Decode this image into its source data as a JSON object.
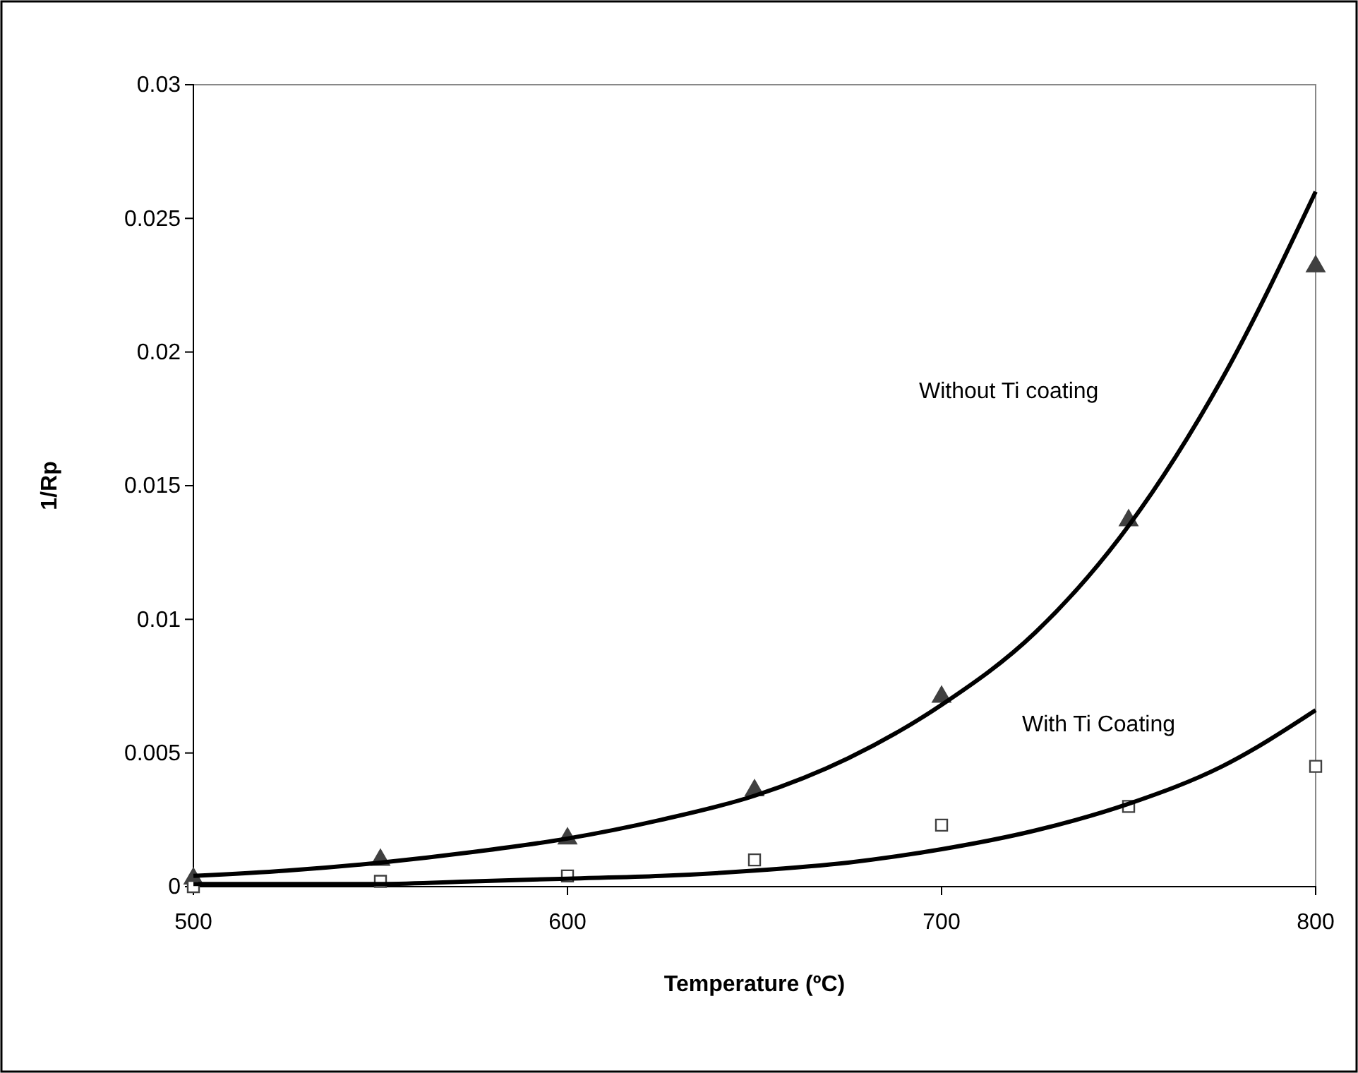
{
  "chart_data": {
    "type": "scatter",
    "xlabel": "Temperature (ºC)",
    "ylabel": "1/Rp",
    "xlim": [
      500,
      800
    ],
    "xticks": [
      500,
      600,
      700,
      800
    ],
    "ylim": [
      0,
      0.03
    ],
    "yticks": [
      0,
      0.005,
      0.01,
      0.015,
      0.02,
      0.025,
      0.03
    ],
    "grid": false,
    "series": [
      {
        "marker": "triangle",
        "color": "#404040",
        "x": [
          500,
          550,
          600,
          650,
          700,
          750,
          800
        ],
        "values": [
          0.0003,
          0.001,
          0.0018,
          0.0036,
          0.0071,
          0.0137,
          0.0232
        ]
      },
      {
        "marker": "square",
        "color": "#404040",
        "x": [
          500,
          550,
          600,
          650,
          700,
          750,
          800
        ],
        "values": [
          0,
          0.0002,
          0.0004,
          0.001,
          0.0023,
          0.003,
          0.0045
        ]
      },
      {
        "type": "line",
        "marker": "none",
        "line_style": "solid",
        "color": "#000000",
        "x": [
          500,
          525,
          550,
          575,
          600,
          625,
          650,
          675,
          700,
          725,
          750,
          775,
          800
        ],
        "values": [
          0.0004,
          0.0006,
          0.0009,
          0.0013,
          0.0018,
          0.0025,
          0.0034,
          0.0048,
          0.0068,
          0.0095,
          0.0135,
          0.019,
          0.026
        ]
      },
      {
        "type": "line",
        "marker": "none",
        "line_style": "solid",
        "color": "#000000",
        "x": [
          500,
          525,
          550,
          575,
          600,
          625,
          650,
          675,
          700,
          725,
          750,
          775,
          800
        ],
        "values": [
          0.0001,
          0.0001,
          0.0001,
          0.0002,
          0.0003,
          0.0004,
          0.0006,
          0.0009,
          0.0014,
          0.0021,
          0.0031,
          0.0045,
          0.0066
        ]
      }
    ],
    "annotations": [
      "Without Ti coating",
      "With Ti Coating"
    ]
  }
}
